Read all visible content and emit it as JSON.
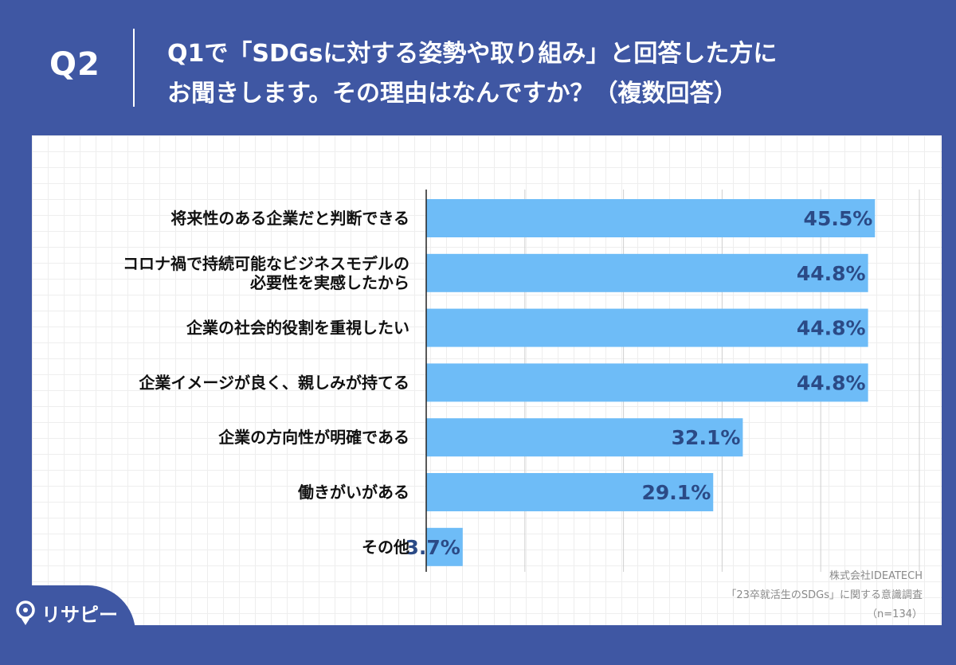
{
  "header": {
    "q_label": "Q2",
    "title_line1": "Q1で「SDGsに対する姿勢や取り組み」と回答した方に",
    "title_line2": "お聞きします。その理由はなんですか？（複数回答）"
  },
  "colors": {
    "background": "#3f57a3",
    "bar": "#6ebcf7",
    "value_text": "#2b4a86",
    "label_text": "#111111"
  },
  "chart_data": {
    "type": "bar",
    "orientation": "horizontal",
    "categories": [
      [
        "将来性のある企業だと判断できる"
      ],
      [
        "コロナ禍で持続可能なビジネスモデルの",
        "必要性を実感したから"
      ],
      [
        "企業の社会的役割を重視したい"
      ],
      [
        "企業イメージが良く、親しみが持てる"
      ],
      [
        "企業の方向性が明確である"
      ],
      [
        "働きがいがある"
      ],
      [
        "その他"
      ]
    ],
    "values": [
      45.5,
      44.8,
      44.8,
      44.8,
      32.1,
      29.1,
      3.7
    ],
    "value_labels": [
      "45.5%",
      "44.8%",
      "44.8%",
      "44.8%",
      "32.1%",
      "29.1%",
      "3.7%"
    ],
    "xlim": [
      0,
      50
    ],
    "grid": true
  },
  "source": {
    "line1": "株式会社IDEATECH",
    "line2": "「23卒就活生のSDGs」に関する意識調査",
    "line3": "（n=134）"
  },
  "logo": {
    "text": "リサピー"
  }
}
